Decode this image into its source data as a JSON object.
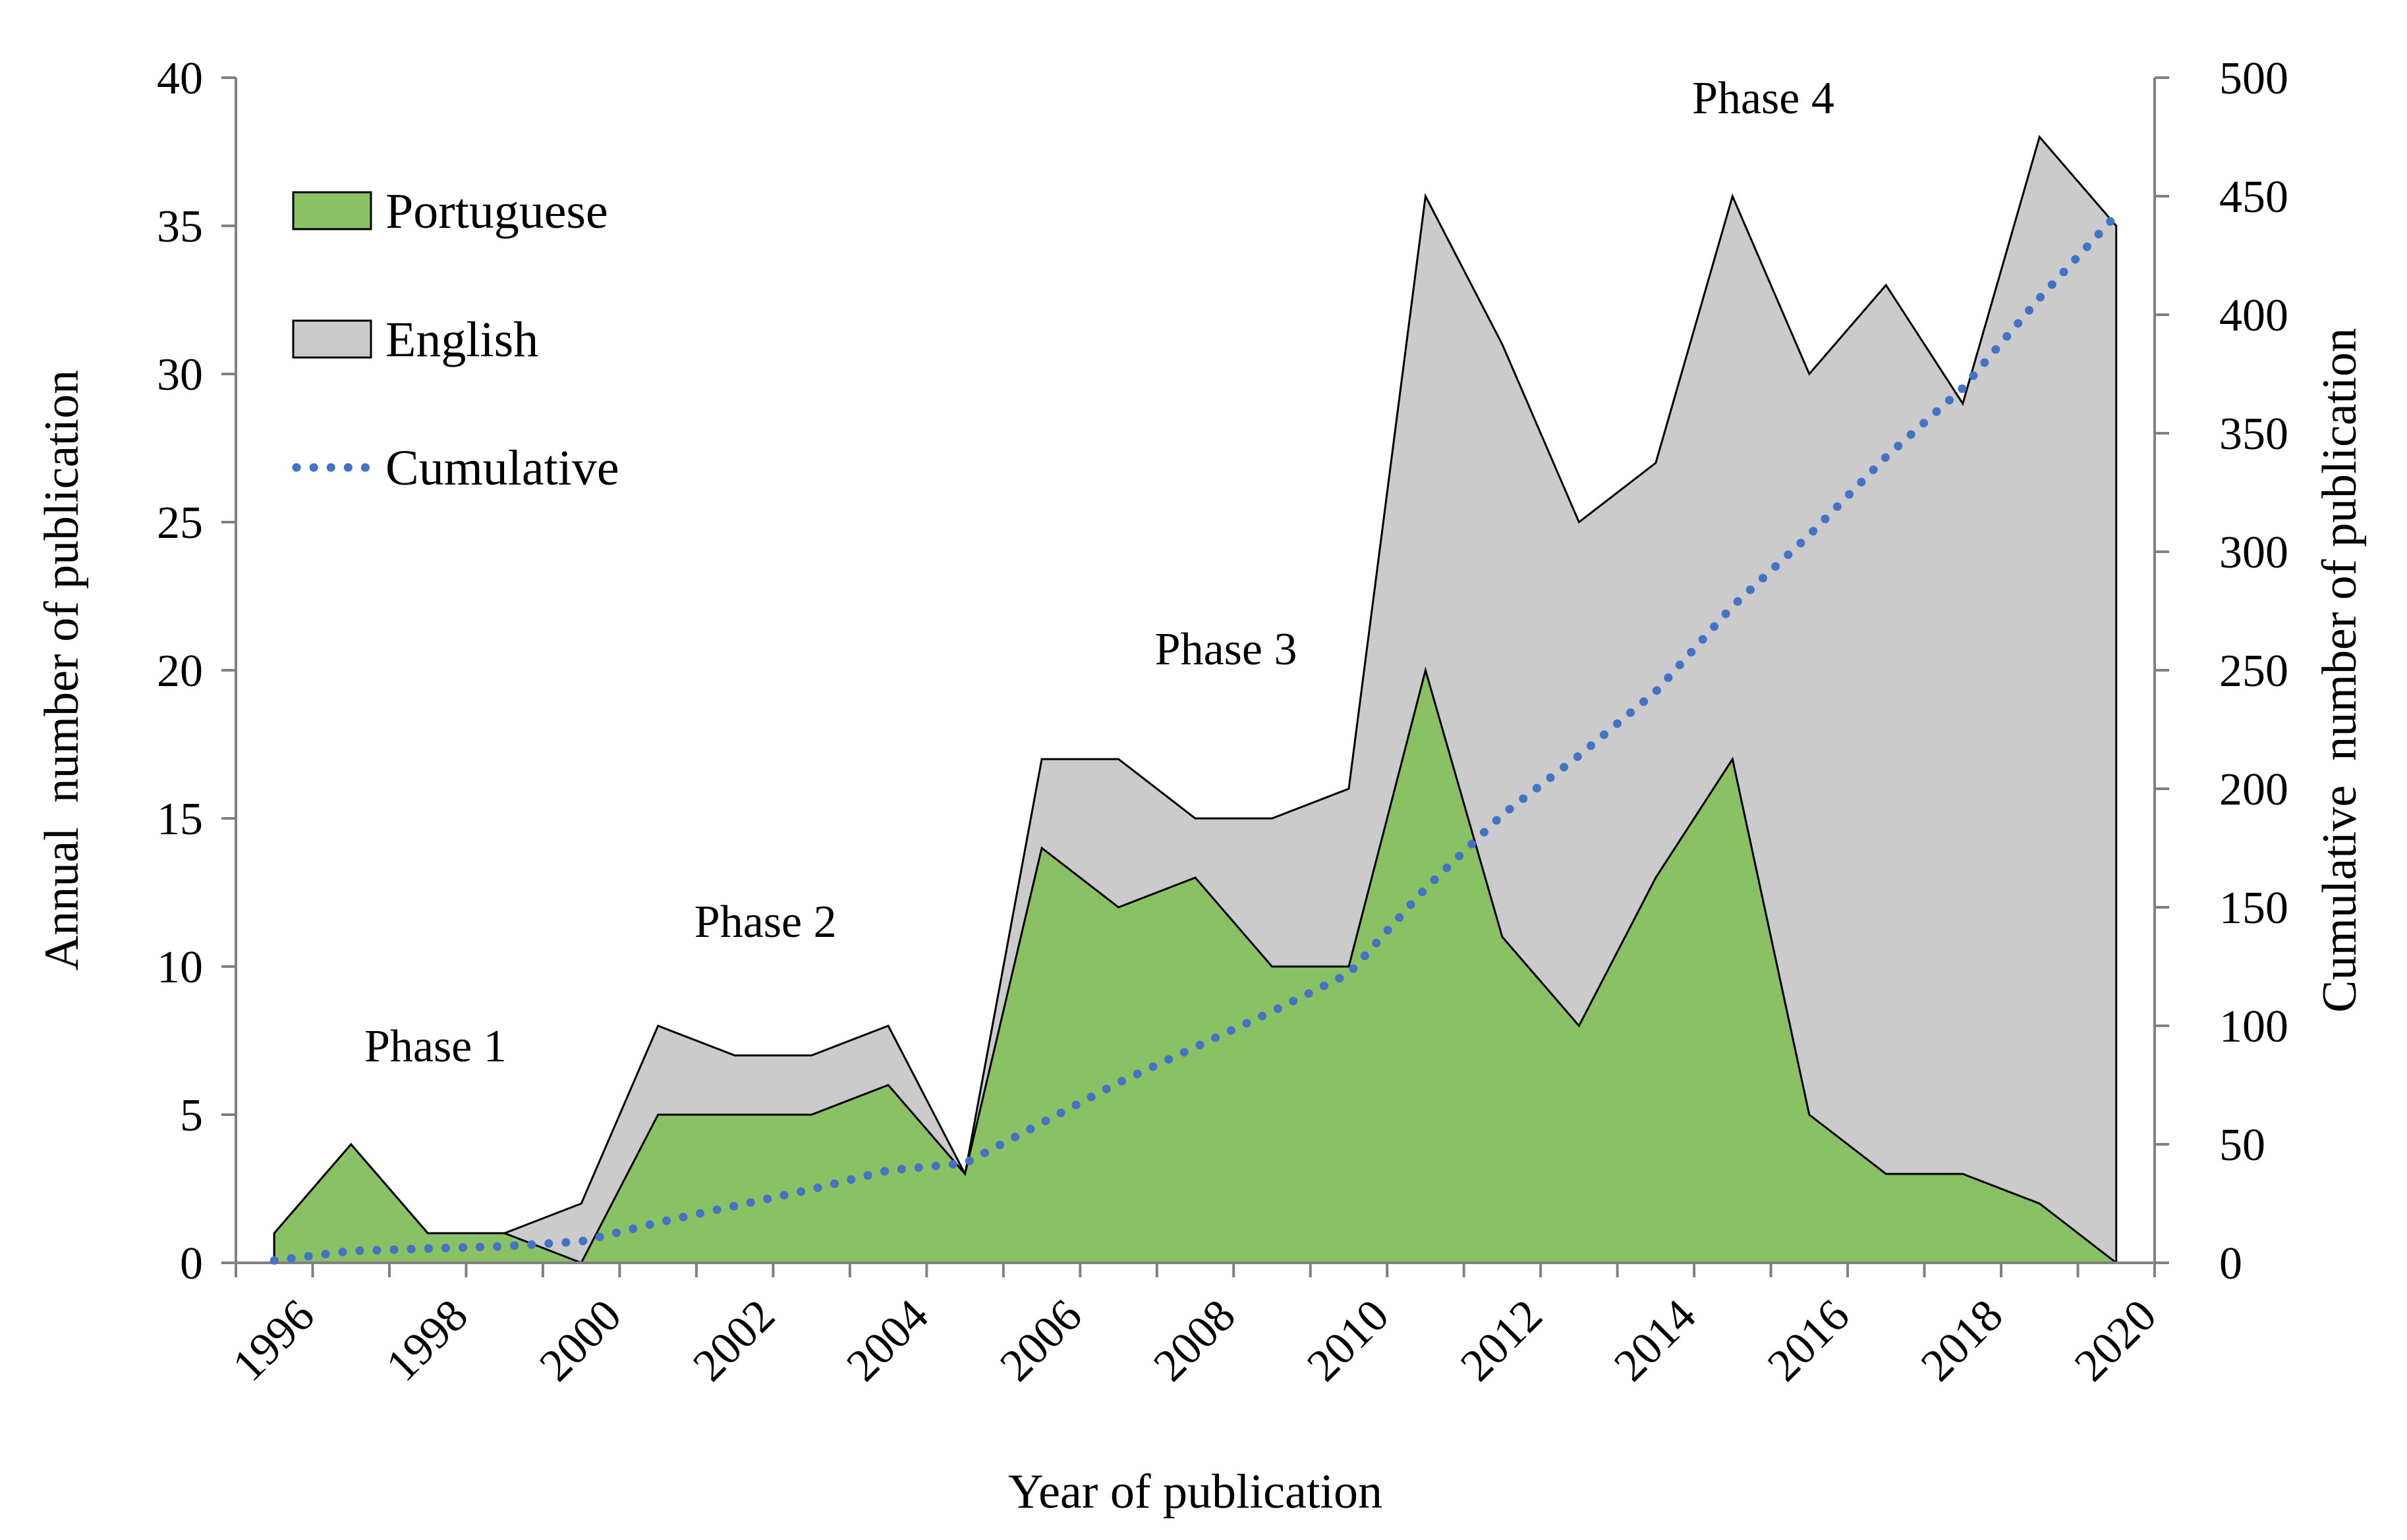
{
  "chart_data": {
    "type": "area",
    "xlabel": "Year of publication",
    "ylabel_left": "Annual  number of publication",
    "ylabel_right": "Cumulative  number of publication",
    "x": [
      1996,
      1997,
      1998,
      1999,
      2000,
      2001,
      2002,
      2003,
      2004,
      2005,
      2006,
      2007,
      2008,
      2009,
      2010,
      2011,
      2012,
      2013,
      2014,
      2015,
      2016,
      2017,
      2018,
      2019,
      2020
    ],
    "x_tick_labels": [
      "1996",
      "1998",
      "2000",
      "2002",
      "2004",
      "2006",
      "2008",
      "2010",
      "2012",
      "2014",
      "2016",
      "2018",
      "2020"
    ],
    "ylim_left": [
      0,
      40
    ],
    "yticks_left": [
      "0",
      "5",
      "10",
      "15",
      "20",
      "25",
      "30",
      "35",
      "40"
    ],
    "ylim_right": [
      0,
      500
    ],
    "yticks_right": [
      "0",
      "50",
      "100",
      "150",
      "200",
      "250",
      "300",
      "350",
      "400",
      "450",
      "500"
    ],
    "series": [
      {
        "name": "Portuguese",
        "kind": "area",
        "color": "#8ac165",
        "axis": "left",
        "values": [
          1,
          4,
          1,
          1,
          0,
          5,
          5,
          5,
          6,
          3,
          14,
          12,
          13,
          10,
          10,
          20,
          11,
          8,
          13,
          17,
          5,
          3,
          3,
          2,
          0
        ]
      },
      {
        "name": "English",
        "kind": "area",
        "color": "#cbcbcb",
        "axis": "left",
        "note_total": true,
        "values": [
          0,
          0,
          0,
          0,
          2,
          3,
          2,
          2,
          2,
          0,
          3,
          5,
          2,
          5,
          6,
          16,
          20,
          17,
          14,
          19,
          25,
          30,
          26,
          36,
          35
        ]
      },
      {
        "name": "Cumulative",
        "kind": "line",
        "style": "dotted",
        "color": "#4472c4",
        "axis": "right",
        "values": [
          1,
          5,
          6,
          7,
          9,
          17,
          24,
          31,
          39,
          42,
          59,
          76,
          91,
          106,
          122,
          158,
          189,
          214,
          241,
          277,
          307,
          340,
          369,
          407,
          442
        ]
      }
    ],
    "annotations": [
      {
        "text": "Phase 1",
        "x": 1998.1,
        "y": 6.8
      },
      {
        "text": "Phase 2",
        "x": 2002.4,
        "y": 11.0
      },
      {
        "text": "Phase 3",
        "x": 2008.4,
        "y": 20.2
      },
      {
        "text": "Phase 4",
        "x": 2015.4,
        "y": 38.8
      }
    ],
    "grid": false,
    "legend_position": "top-left"
  }
}
